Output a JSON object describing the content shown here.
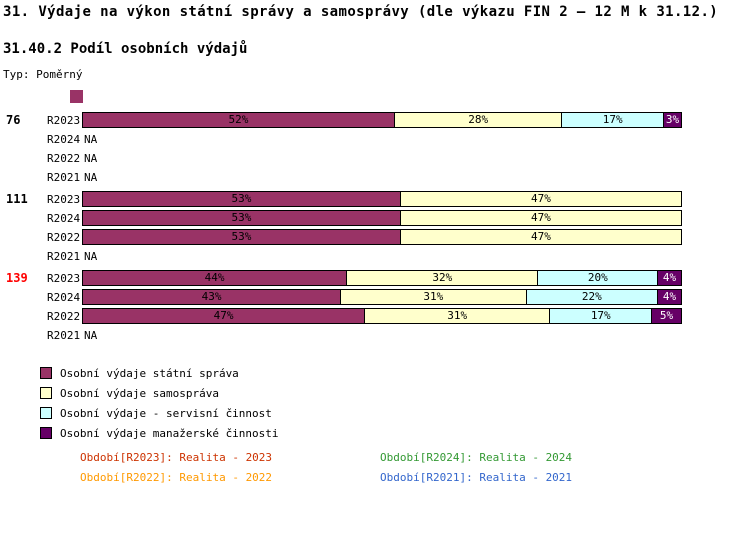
{
  "title": "31. Výdaje na výkon státní správy a samosprávy (dle výkazu FIN 2 – 12 M k 31.12.)",
  "subtitle": "31.40.2 Podíl osobních výdajů",
  "type_label": "Typ: Poměrný",
  "chart_data": {
    "type": "bar",
    "orientation": "horizontal",
    "stacked": true,
    "unit": "%",
    "na_label": "NA",
    "xlim": [
      0,
      100
    ],
    "grid": false,
    "series": [
      {
        "name": "Osobní výdaje státní správa",
        "color": "#993366",
        "label_text_color": "#000000"
      },
      {
        "name": "Osobní výdaje samospráva",
        "color": "#FFFFCC",
        "label_text_color": "#000000"
      },
      {
        "name": "Osobní výdaje - servisní činnost",
        "color": "#CCFFFF",
        "label_text_color": "#000000"
      },
      {
        "name": "Osobní výdaje manažerské činnosti",
        "color": "#660066",
        "label_text_color": "#FFFFFF"
      }
    ],
    "groups": [
      {
        "label": "76",
        "label_color": "#000000",
        "rows": [
          {
            "period": "R2023",
            "values": [
              52,
              28,
              17,
              3
            ]
          },
          {
            "period": "R2024",
            "na": true
          },
          {
            "period": "R2022",
            "na": true
          },
          {
            "period": "R2021",
            "na": true
          }
        ]
      },
      {
        "label": "111",
        "label_color": "#000000",
        "rows": [
          {
            "period": "R2023",
            "values": [
              53,
              47
            ]
          },
          {
            "period": "R2024",
            "values": [
              53,
              47
            ]
          },
          {
            "period": "R2022",
            "values": [
              53,
              47
            ]
          },
          {
            "period": "R2021",
            "na": true
          }
        ]
      },
      {
        "label": "139",
        "label_color": "#FF0000",
        "rows": [
          {
            "period": "R2023",
            "values": [
              44,
              32,
              20,
              4
            ]
          },
          {
            "period": "R2024",
            "values": [
              43,
              31,
              22,
              4
            ]
          },
          {
            "period": "R2022",
            "values": [
              47,
              31,
              17,
              5
            ]
          },
          {
            "period": "R2021",
            "na": true
          }
        ]
      }
    ]
  },
  "footer": [
    {
      "label": "Období[R2023]: Realita - 2023",
      "color": "#CC3300"
    },
    {
      "label": "Období[R2024]: Realita - 2024",
      "color": "#339933"
    },
    {
      "label": "Období[R2022]: Realita - 2022",
      "color": "#FF9900"
    },
    {
      "label": "Období[R2021]: Realita - 2021",
      "color": "#3366CC"
    }
  ]
}
